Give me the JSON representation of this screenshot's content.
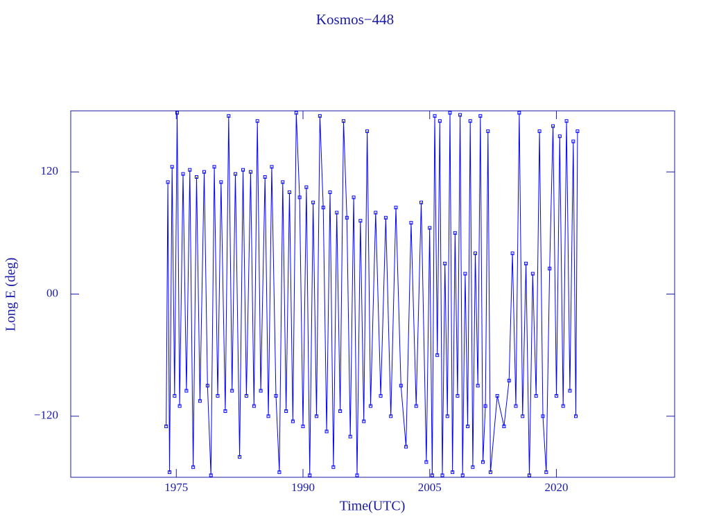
{
  "chart_data": {
    "type": "line",
    "title": "Kosmos−448",
    "xlabel": "Time(UTC)",
    "ylabel": "Long E (deg)",
    "color": "#0000ff",
    "markers": true,
    "xlim": [
      1962.5,
      2034
    ],
    "xticks": [
      1975,
      1990,
      2005,
      2020
    ],
    "ylim": [
      -180,
      180
    ],
    "yticks": [
      {
        "value": 120,
        "label": "120"
      },
      {
        "value": 0,
        "label": "00"
      },
      {
        "value": -120,
        "label": "−120"
      }
    ],
    "x": [
      1973.8,
      1974.0,
      1974.2,
      1974.5,
      1974.8,
      1975.1,
      1975.4,
      1975.8,
      1976.2,
      1976.6,
      1977.0,
      1977.4,
      1977.8,
      1978.3,
      1978.7,
      1979.1,
      1979.5,
      1979.9,
      1980.3,
      1980.8,
      1981.2,
      1981.6,
      1982.0,
      1982.5,
      1982.9,
      1983.3,
      1983.8,
      1984.2,
      1984.6,
      1985.0,
      1985.5,
      1985.9,
      1986.3,
      1986.8,
      1987.2,
      1987.6,
      1988.0,
      1988.4,
      1988.8,
      1989.2,
      1989.6,
      1990.0,
      1990.4,
      1990.8,
      1991.2,
      1991.6,
      1992.0,
      1992.4,
      1992.8,
      1993.2,
      1993.6,
      1994.0,
      1994.4,
      1994.8,
      1995.2,
      1995.6,
      1996.0,
      1996.4,
      1996.8,
      1997.2,
      1997.6,
      1998.0,
      1998.6,
      1999.2,
      1999.8,
      2000.4,
      2001.0,
      2001.6,
      2002.2,
      2002.8,
      2003.4,
      2004.0,
      2004.6,
      2005.0,
      2005.3,
      2005.6,
      2005.9,
      2006.2,
      2006.5,
      2006.8,
      2007.1,
      2007.4,
      2007.7,
      2008.0,
      2008.3,
      2008.6,
      2008.9,
      2009.2,
      2009.5,
      2009.8,
      2010.1,
      2010.4,
      2010.7,
      2011.0,
      2011.3,
      2011.6,
      2011.9,
      2012.2,
      2013.0,
      2013.8,
      2014.4,
      2014.8,
      2015.2,
      2015.6,
      2016.0,
      2016.4,
      2016.8,
      2017.2,
      2017.6,
      2018.0,
      2018.4,
      2018.8,
      2019.2,
      2019.6,
      2020.0,
      2020.4,
      2020.8,
      2021.2,
      2021.6,
      2022.0,
      2022.3,
      2022.5
    ],
    "values": [
      -130,
      110,
      -175,
      125,
      -100,
      178,
      -110,
      118,
      -95,
      122,
      -170,
      115,
      -105,
      120,
      -90,
      -178,
      125,
      -100,
      110,
      -115,
      175,
      -95,
      118,
      -160,
      122,
      -100,
      120,
      -110,
      170,
      -95,
      115,
      -120,
      125,
      -100,
      -175,
      110,
      -115,
      100,
      -125,
      178,
      95,
      -130,
      105,
      -178,
      90,
      -120,
      175,
      85,
      -135,
      100,
      -170,
      80,
      -115,
      170,
      75,
      -140,
      95,
      -178,
      72,
      -125,
      160,
      -110,
      80,
      -100,
      75,
      -120,
      85,
      -90,
      -150,
      70,
      -110,
      90,
      -165,
      65,
      -178,
      175,
      -60,
      170,
      -178,
      30,
      -120,
      178,
      -175,
      60,
      -100,
      176,
      -178,
      20,
      -130,
      170,
      -170,
      40,
      -90,
      175,
      -165,
      -110,
      160,
      -175,
      -100,
      -130,
      -85,
      40,
      -110,
      178,
      -120,
      30,
      -178,
      20,
      -100,
      160,
      -120,
      -175,
      25,
      165,
      -100,
      155,
      -110,
      170,
      -95,
      150,
      -120,
      160
    ]
  }
}
